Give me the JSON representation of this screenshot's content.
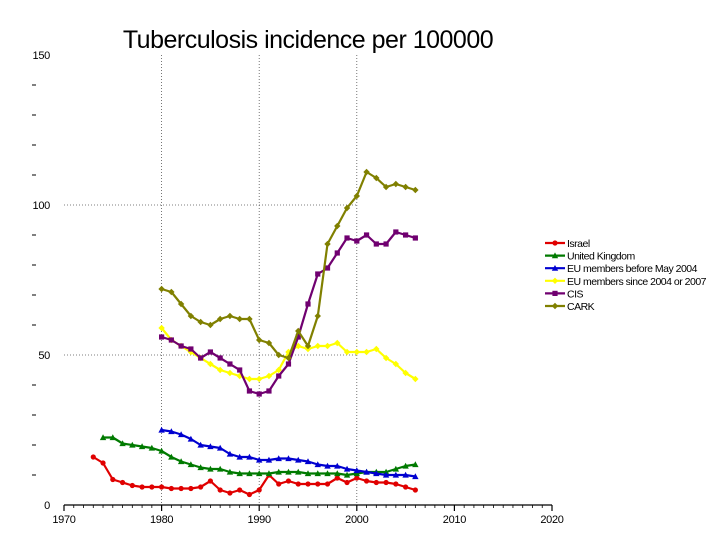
{
  "chart_data": {
    "type": "line",
    "title": "Tuberculosis incidence per 100000",
    "xlabel": "",
    "ylabel": "",
    "xlim": [
      1970,
      2020
    ],
    "ylim": [
      0,
      150
    ],
    "x_ticks": [
      1970,
      1980,
      1990,
      2000,
      2010,
      2020
    ],
    "y_ticks": [
      0,
      50,
      100,
      150
    ],
    "grid": "dotted vertical at 1980, 1990, 2000; dotted horizontal at 50, 100",
    "legend_position": "right",
    "series": [
      {
        "name": "Israel",
        "color": "#e00000",
        "marker": "circle",
        "x": [
          1973,
          1974,
          1975,
          1976,
          1977,
          1978,
          1979,
          1980,
          1981,
          1982,
          1983,
          1984,
          1985,
          1986,
          1987,
          1988,
          1989,
          1990,
          1991,
          1992,
          1993,
          1994,
          1995,
          1996,
          1997,
          1998,
          1999,
          2000,
          2001,
          2002,
          2003,
          2004,
          2005,
          2006
        ],
        "values": [
          16,
          14,
          8.5,
          7.5,
          6.5,
          6,
          6,
          6,
          5.5,
          5.5,
          5.5,
          6,
          8,
          5,
          4,
          5,
          3.5,
          5,
          10,
          7,
          8,
          7,
          7,
          7,
          7,
          9,
          7.5,
          9,
          8,
          7.5,
          7.5,
          7,
          6,
          5
        ]
      },
      {
        "name": "United Kingdom",
        "color": "#007a00",
        "marker": "triangle",
        "x": [
          1974,
          1975,
          1976,
          1977,
          1978,
          1979,
          1980,
          1981,
          1982,
          1983,
          1984,
          1985,
          1986,
          1987,
          1988,
          1989,
          1990,
          1991,
          1992,
          1993,
          1994,
          1995,
          1996,
          1997,
          1998,
          1999,
          2000,
          2001,
          2002,
          2003,
          2004,
          2005,
          2006
        ],
        "values": [
          22.5,
          22.5,
          20.5,
          20,
          19.5,
          19,
          18,
          16,
          14.5,
          13.5,
          12.5,
          12,
          12,
          11,
          10.5,
          10.5,
          10.5,
          10.5,
          11,
          11,
          11,
          10.5,
          10.5,
          10.5,
          10.5,
          10,
          10.5,
          11,
          11,
          11,
          12,
          13,
          13.5
        ]
      },
      {
        "name": "EU members before May 2004",
        "color": "#0000d0",
        "marker": "triangle",
        "x": [
          1980,
          1981,
          1982,
          1983,
          1984,
          1985,
          1986,
          1987,
          1988,
          1989,
          1990,
          1991,
          1992,
          1993,
          1994,
          1995,
          1996,
          1997,
          1998,
          1999,
          2000,
          2001,
          2002,
          2003,
          2004,
          2005,
          2006
        ],
        "values": [
          25,
          24.5,
          23.5,
          22,
          20,
          19.5,
          19,
          17,
          16,
          16,
          15,
          15,
          15.5,
          15.5,
          15,
          14.5,
          13.5,
          13,
          13,
          12,
          11.5,
          11,
          10.5,
          10,
          10,
          10,
          9.5
        ]
      },
      {
        "name": "EU members since 2004 or 2007",
        "color": "#ffff00",
        "marker": "diamond",
        "x": [
          1980,
          1981,
          1982,
          1983,
          1984,
          1985,
          1986,
          1987,
          1988,
          1989,
          1990,
          1991,
          1992,
          1993,
          1994,
          1995,
          1996,
          1997,
          1998,
          1999,
          2000,
          2001,
          2002,
          2003,
          2004,
          2005,
          2006
        ],
        "values": [
          59,
          55,
          53,
          51,
          49,
          47,
          45,
          44,
          43,
          42,
          42,
          43,
          45,
          51,
          53,
          52,
          53,
          53,
          54,
          51,
          51,
          51,
          52,
          49,
          47,
          44,
          42
        ]
      },
      {
        "name": "CIS",
        "color": "#700070",
        "marker": "square",
        "x": [
          1980,
          1981,
          1982,
          1983,
          1984,
          1985,
          1986,
          1987,
          1988,
          1989,
          1990,
          1991,
          1992,
          1993,
          1994,
          1995,
          1996,
          1997,
          1998,
          1999,
          2000,
          2001,
          2002,
          2003,
          2004,
          2005,
          2006
        ],
        "values": [
          56,
          55,
          53,
          52,
          49,
          51,
          49,
          47,
          45,
          38,
          37,
          38,
          43,
          47,
          56,
          67,
          77,
          79,
          84,
          89,
          88,
          90,
          87,
          87,
          91,
          90,
          89
        ]
      },
      {
        "name": "CARK",
        "color": "#808000",
        "marker": "diamond",
        "x": [
          1980,
          1981,
          1982,
          1983,
          1984,
          1985,
          1986,
          1987,
          1988,
          1989,
          1990,
          1991,
          1992,
          1993,
          1994,
          1995,
          1996,
          1997,
          1998,
          1999,
          2000,
          2001,
          2002,
          2003,
          2004,
          2005,
          2006
        ],
        "values": [
          72,
          71,
          67,
          63,
          61,
          60,
          62,
          63,
          62,
          62,
          55,
          54,
          50,
          49,
          58,
          53,
          63,
          87,
          93,
          99,
          103,
          111,
          109,
          106,
          107,
          106,
          105
        ]
      }
    ]
  }
}
